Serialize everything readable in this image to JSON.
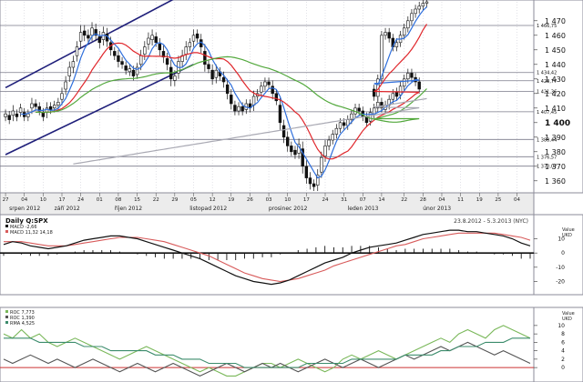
{
  "chart_data": [
    {
      "type": "candlestick",
      "title": "",
      "y_axis": {
        "range": [
          1353,
          1483
        ],
        "ticks": [
          1360,
          1370,
          1380,
          1390,
          1400,
          1410,
          1420,
          1430,
          1440,
          1450,
          1460,
          1470
        ],
        "labels": [
          "1 360",
          "1 370",
          "1 380",
          "1 390",
          "1 400",
          "1 410",
          "1 420",
          "1 430",
          "1 440",
          "1 450",
          "1 460",
          "1 470"
        ],
        "emphasized_tick": 1400,
        "side": "right"
      },
      "x_axis": {
        "tick_labels": [
          "27",
          "04",
          "10",
          "17",
          "24",
          "01",
          "08",
          "15",
          "22",
          "29",
          "05",
          "12",
          "19",
          "26",
          "03",
          "10",
          "17",
          "24",
          "31",
          "07",
          "14",
          "22",
          "28",
          "04",
          "11",
          "19",
          "25",
          "04"
        ],
        "tick_index": [
          0,
          5,
          10,
          15,
          20,
          25,
          30,
          35,
          40,
          45,
          50,
          55,
          60,
          65,
          70,
          75,
          80,
          85,
          90,
          95,
          100,
          106,
          111,
          116,
          121,
          126,
          131,
          136
        ],
        "month_labels": [
          "srpen 2012",
          "září 2012",
          "říjen 2012",
          "listopad 2012",
          "prosinec 2012",
          "leden 2013",
          "únor 2013"
        ],
        "month_index": [
          0,
          12,
          28,
          48,
          69,
          90,
          110
        ],
        "total_slots": 140
      },
      "reference_lines": [
        {
          "label": "1 466,75",
          "value": 1466.75
        },
        {
          "label": "1 434,42",
          "value": 1434.42
        },
        {
          "label": "1 428,77",
          "value": 1428.77
        },
        {
          "label": "1 421,36",
          "value": 1421.36
        },
        {
          "label": "1 407,45",
          "value": 1407.45
        },
        {
          "label": "1 388,44",
          "value": 1388.44
        },
        {
          "label": "1 376,57",
          "value": 1376.57
        },
        {
          "label": "1 370,07",
          "value": 1370.07
        }
      ],
      "channel_lines": [
        {
          "from": {
            "index": 0,
            "value": 1424
          },
          "to": {
            "index": 50,
            "value": 1492
          }
        },
        {
          "from": {
            "index": 0,
            "value": 1378
          },
          "to": {
            "index": 50,
            "value": 1440
          }
        }
      ],
      "candles": {
        "count": 111,
        "close": [
          1406,
          1402,
          1408,
          1404,
          1410,
          1404,
          1406,
          1413,
          1411,
          1408,
          1404,
          1410,
          1409,
          1412,
          1414,
          1420,
          1428,
          1438,
          1442,
          1452,
          1462,
          1460,
          1458,
          1465,
          1460,
          1455,
          1462,
          1456,
          1450,
          1446,
          1442,
          1440,
          1436,
          1437,
          1432,
          1438,
          1446,
          1452,
          1458,
          1460,
          1455,
          1450,
          1445,
          1440,
          1430,
          1432,
          1442,
          1446,
          1452,
          1455,
          1460,
          1458,
          1452,
          1440,
          1437,
          1430,
          1436,
          1432,
          1428,
          1420,
          1413,
          1408,
          1411,
          1408,
          1413,
          1410,
          1418,
          1420,
          1425,
          1428,
          1426,
          1420,
          1415,
          1400,
          1390,
          1384,
          1380,
          1378,
          1385,
          1370,
          1362,
          1358,
          1356,
          1364,
          1376,
          1384,
          1388,
          1392,
          1396,
          1400,
          1398,
          1402,
          1406,
          1410,
          1408,
          1404,
          1400,
          1407,
          1410,
          1414,
          1410,
          1412,
          1416,
          1420,
          1418,
          1425,
          1430,
          1434,
          1431,
          1428,
          1423
        ],
        "open_offset": [
          -2,
          3,
          -3,
          2,
          -3,
          3,
          -2,
          -3,
          2,
          3,
          3,
          -3,
          2,
          -2,
          -2,
          -4,
          -5,
          -6,
          -4,
          -6,
          -6,
          3,
          2,
          -5,
          4,
          4,
          -5,
          5,
          5,
          3,
          4,
          2,
          3,
          -2,
          4,
          -5,
          -6,
          -5,
          -4,
          -3,
          4,
          4,
          4,
          4,
          8,
          -3,
          -8,
          -4,
          -5,
          -3,
          -4,
          3,
          5,
          9,
          3,
          6,
          -5,
          3,
          3,
          6,
          6,
          4,
          -3,
          3,
          -4,
          3,
          -6,
          -2,
          -4,
          -3,
          2,
          5,
          5,
          12,
          8,
          6,
          4,
          3,
          -6,
          12,
          8,
          4,
          2,
          -7,
          -10,
          -7,
          -4,
          -4,
          -4,
          -4,
          2,
          -4,
          -4,
          -4,
          2,
          4,
          4,
          -6,
          -4,
          -4,
          4,
          -3,
          -4,
          -4,
          3,
          -6,
          -5,
          -4,
          3,
          3,
          5
        ],
        "wick": [
          3,
          3,
          4,
          3,
          3,
          3,
          3,
          4,
          3,
          3,
          3,
          4,
          3,
          3,
          3,
          4,
          4,
          4,
          4,
          4,
          5,
          4,
          4,
          4,
          4,
          4,
          4,
          4,
          4,
          3,
          4,
          3,
          3,
          3,
          3,
          3,
          4,
          4,
          4,
          4,
          3,
          4,
          4,
          4,
          5,
          4,
          4,
          4,
          4,
          3,
          4,
          3,
          4,
          5,
          3,
          4,
          4,
          3,
          4,
          4,
          4,
          3,
          3,
          3,
          3,
          3,
          4,
          3,
          3,
          3,
          3,
          4,
          3,
          5,
          4,
          4,
          3,
          3,
          4,
          5,
          4,
          4,
          3,
          4,
          4,
          4,
          3,
          3,
          3,
          3,
          3,
          3,
          3,
          3,
          3,
          3,
          3,
          3,
          3,
          3,
          3,
          3,
          3,
          3,
          3,
          3,
          3,
          3,
          3,
          3,
          3
        ],
        "extension_close": [
          1418,
          1430,
          1460,
          1462,
          1458,
          1452,
          1455,
          1460,
          1465,
          1470,
          1475,
          1478,
          1480,
          1482,
          1483
        ],
        "extension_start_index": 86
      },
      "moving_averages": [
        {
          "color": "#2f6fdc",
          "period": 5
        },
        {
          "color": "#e0262b",
          "period": 13
        },
        {
          "color": "#52a83c",
          "period": 45
        },
        {
          "color": "#a9a9b3",
          "period": 200
        }
      ],
      "colors": {
        "candle": "#111111",
        "grid": "#7a7a8a",
        "channel": "#1f1f7a",
        "tick_axis_bg": "#e8e8e8"
      }
    },
    {
      "type": "macd",
      "title": "Daily Q:SPX",
      "range_label": "23.8.2012 - 5.3.2013 (NYC)",
      "legend": [
        {
          "label": "MACD",
          "value": "-2,66",
          "color": "#111111"
        },
        {
          "label": "MACD",
          "value": "11,32",
          "extra": "14,18",
          "color": "#d85b5b"
        }
      ],
      "axis_title": "Value\nUKD",
      "y_axis": {
        "range": [
          -28,
          18
        ],
        "ticks": [
          10,
          0,
          -10,
          -20
        ],
        "labels": [
          "10",
          "0",
          "-10",
          "-20"
        ]
      },
      "macd_line": [
        6,
        8,
        7,
        5,
        4,
        3,
        4,
        5,
        7,
        9,
        10,
        11,
        12,
        12,
        11,
        10,
        8,
        6,
        4,
        2,
        0,
        -2,
        -4,
        -7,
        -10,
        -13,
        -16,
        -18,
        -20,
        -21,
        -22,
        -21,
        -19,
        -16,
        -13,
        -10,
        -7,
        -5,
        -3,
        0,
        2,
        4,
        5,
        6,
        7,
        9,
        11,
        13,
        14,
        15,
        16,
        16,
        15,
        15,
        14,
        13,
        12,
        10,
        7,
        5
      ],
      "signal_line": [
        8,
        8,
        8,
        7,
        6,
        5,
        5,
        5,
        6,
        7,
        8,
        9,
        10,
        11,
        11,
        11,
        10,
        9,
        8,
        6,
        4,
        2,
        0,
        -2,
        -5,
        -8,
        -11,
        -14,
        -16,
        -18,
        -19,
        -20,
        -19,
        -18,
        -16,
        -14,
        -12,
        -9,
        -7,
        -5,
        -3,
        -1,
        1,
        3,
        5,
        6,
        8,
        10,
        11,
        12,
        13,
        14,
        14,
        14,
        14,
        14,
        13,
        12,
        11,
        9
      ],
      "histogram": [
        -2,
        0,
        -1,
        -2,
        -2,
        -2,
        -1,
        0,
        1,
        2,
        2,
        2,
        2,
        1,
        0,
        -1,
        -2,
        -3,
        -4,
        -4,
        -4,
        -4,
        -4,
        -5,
        -5,
        -5,
        -5,
        -4,
        -4,
        -3,
        -3,
        -1,
        0,
        2,
        3,
        4,
        5,
        4,
        4,
        5,
        5,
        5,
        4,
        3,
        2,
        3,
        3,
        3,
        3,
        3,
        3,
        2,
        1,
        1,
        0,
        -1,
        -1,
        -2,
        -4,
        -4
      ],
      "colors": {
        "macd": "#111111",
        "signal": "#d85b5b",
        "histogram": "#111111",
        "zero": "#111111"
      }
    },
    {
      "type": "line",
      "title": "",
      "legend": [
        {
          "label": "ROC",
          "value": "7,773",
          "color": "#7ab85a"
        },
        {
          "label": "ROC",
          "value": "1,390",
          "color": "#555555"
        },
        {
          "label": "RMA",
          "value": "4,525",
          "color": "#3c8c6c"
        }
      ],
      "axis_title": "Value\nUKD",
      "y_axis": {
        "range": [
          -3,
          13
        ],
        "ticks": [
          10,
          8,
          6,
          4,
          2,
          0
        ],
        "labels": [
          "10",
          "8",
          "6",
          "4",
          "2",
          "0"
        ]
      },
      "series": [
        {
          "label": "ROC",
          "color": "#7ab85a",
          "values": [
            8,
            7,
            9,
            7,
            8,
            6,
            5,
            6,
            7,
            6,
            5,
            4,
            3,
            2,
            3,
            4,
            5,
            4,
            3,
            2,
            1,
            0,
            -1,
            0,
            -1,
            -2,
            -2,
            -1,
            0,
            1,
            1,
            0,
            1,
            2,
            1,
            0,
            -1,
            0,
            2,
            3,
            2,
            3,
            4,
            3,
            2,
            3,
            4,
            5,
            6,
            7,
            6,
            8,
            9,
            8,
            7,
            9,
            10,
            9,
            8,
            7
          ]
        },
        {
          "label": "ROC",
          "color": "#555555",
          "values": [
            2,
            1,
            2,
            3,
            2,
            1,
            2,
            1,
            0,
            1,
            2,
            1,
            0,
            -1,
            0,
            1,
            0,
            -1,
            0,
            1,
            0,
            -1,
            -2,
            -1,
            0,
            1,
            0,
            -1,
            0,
            1,
            0,
            1,
            0,
            -1,
            0,
            1,
            2,
            1,
            0,
            1,
            2,
            1,
            0,
            1,
            2,
            3,
            2,
            3,
            4,
            5,
            4,
            5,
            6,
            5,
            4,
            3,
            4,
            3,
            2,
            1
          ]
        },
        {
          "label": "RMA",
          "color": "#3c8c6c",
          "values": [
            7,
            7,
            7,
            7,
            6,
            6,
            6,
            6,
            6,
            5,
            5,
            5,
            4,
            4,
            4,
            4,
            4,
            3,
            3,
            3,
            2,
            2,
            2,
            1,
            1,
            1,
            1,
            0,
            0,
            0,
            0,
            0,
            0,
            0,
            1,
            1,
            1,
            1,
            1,
            2,
            2,
            2,
            2,
            2,
            2,
            3,
            3,
            3,
            3,
            4,
            4,
            5,
            5,
            5,
            6,
            6,
            6,
            7,
            7,
            7
          ]
        }
      ],
      "reference_line": 0,
      "colors": {
        "zero": "#cc3333"
      }
    }
  ]
}
